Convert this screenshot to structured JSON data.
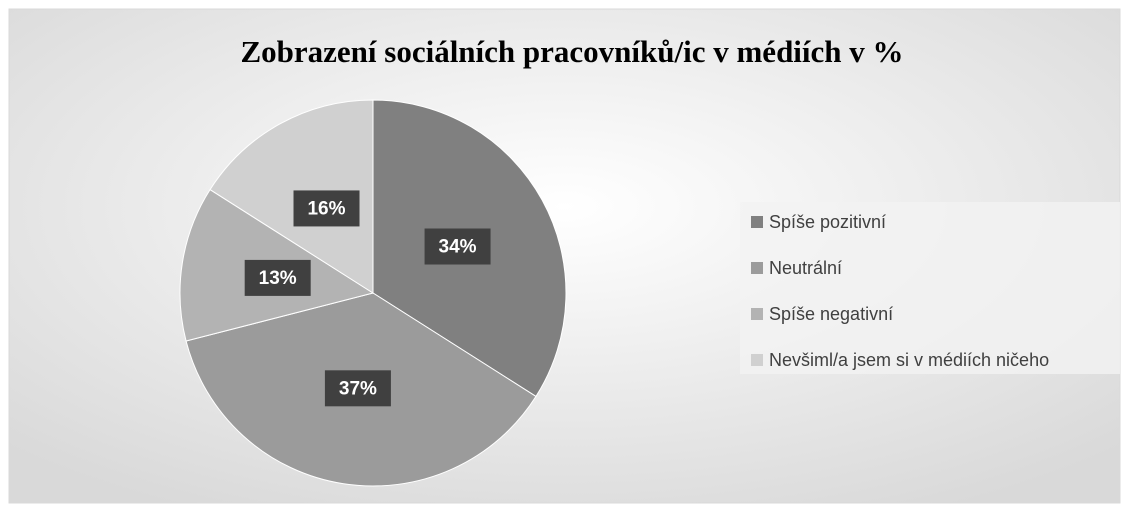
{
  "chart_data": {
    "type": "pie",
    "title": "Zobrazení sociálních pracovníků/ic v médiích v %",
    "categories": [
      "Spíše pozitivní",
      "Neutrální",
      "Spíše negativní",
      "Nevšiml/a jsem si v médiích ničeho"
    ],
    "values": [
      34,
      37,
      13,
      16
    ],
    "value_labels": [
      "34%",
      "37%",
      "13%",
      "16%"
    ],
    "colors": [
      "#808080",
      "#9b9b9b",
      "#b3b3b3",
      "#d0d0d0"
    ],
    "legend": "right"
  }
}
